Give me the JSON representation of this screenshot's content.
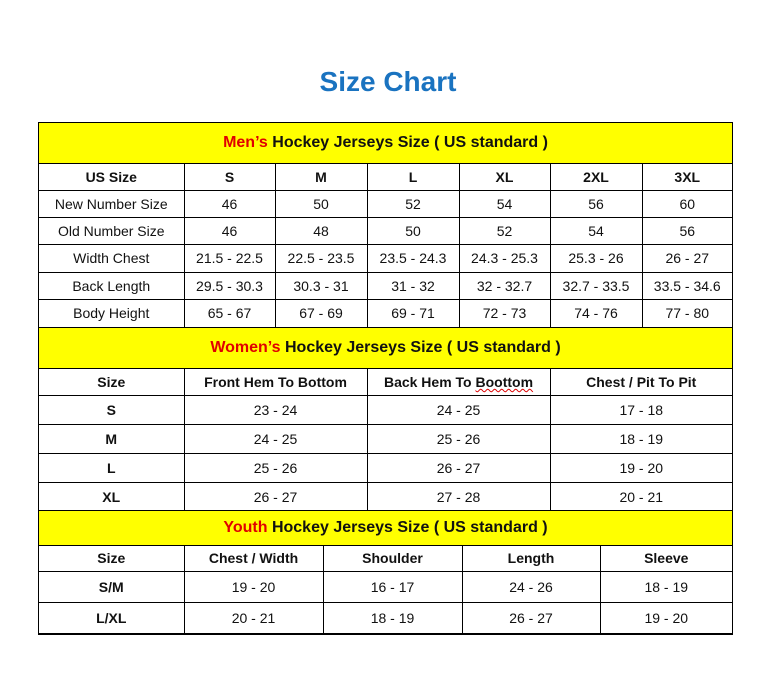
{
  "title": "Size Chart",
  "colors": {
    "title": "#1a73c0",
    "banner_bg": "#ffff00",
    "accent": "#e00000"
  },
  "men": {
    "banner_accent": "Men’s",
    "banner_rest": " Hockey Jerseys Size ( US standard )",
    "headers": [
      "US Size",
      "S",
      "M",
      "L",
      "XL",
      "2XL",
      "3XL"
    ],
    "rows": [
      [
        "New Number Size",
        "46",
        "50",
        "52",
        "54",
        "56",
        "60"
      ],
      [
        "Old Number Size",
        "46",
        "48",
        "50",
        "52",
        "54",
        "56"
      ],
      [
        "Width Chest",
        "21.5 - 22.5",
        "22.5 - 23.5",
        "23.5 - 24.3",
        "24.3 - 25.3",
        "25.3 - 26",
        "26 - 27"
      ],
      [
        "Back Length",
        "29.5 - 30.3",
        "30.3 - 31",
        "31 - 32",
        "32 - 32.7",
        "32.7 - 33.5",
        "33.5 - 34.6"
      ],
      [
        "Body Height",
        "65 - 67",
        "67 - 69",
        "69 - 71",
        "72 - 73",
        "74 - 76",
        "77 - 80"
      ]
    ]
  },
  "women": {
    "banner_accent": "Women’s",
    "banner_rest": " Hockey Jerseys Size ( US standard )",
    "headers": [
      "Size",
      "Front Hem To Bottom",
      "Back Hem To Boottom",
      "Chest / Pit To Pit"
    ],
    "rows": [
      [
        "S",
        "23 - 24",
        "24 - 25",
        "17 - 18"
      ],
      [
        "M",
        "24 - 25",
        "25 - 26",
        "18 - 19"
      ],
      [
        "L",
        "25 - 26",
        "26 - 27",
        "19 - 20"
      ],
      [
        "XL",
        "26 - 27",
        "27 - 28",
        "20 - 21"
      ]
    ]
  },
  "youth": {
    "banner_accent": "Youth",
    "banner_rest": " Hockey Jerseys Size ( US standard )",
    "headers": [
      "Size",
      "Chest / Width",
      "Shoulder",
      "Length",
      "Sleeve"
    ],
    "rows": [
      [
        "S/M",
        "19 - 20",
        "16 - 17",
        "24 - 26",
        "18 - 19"
      ],
      [
        "L/XL",
        "20 - 21",
        "18 - 19",
        "26 - 27",
        "19 - 20"
      ]
    ]
  }
}
